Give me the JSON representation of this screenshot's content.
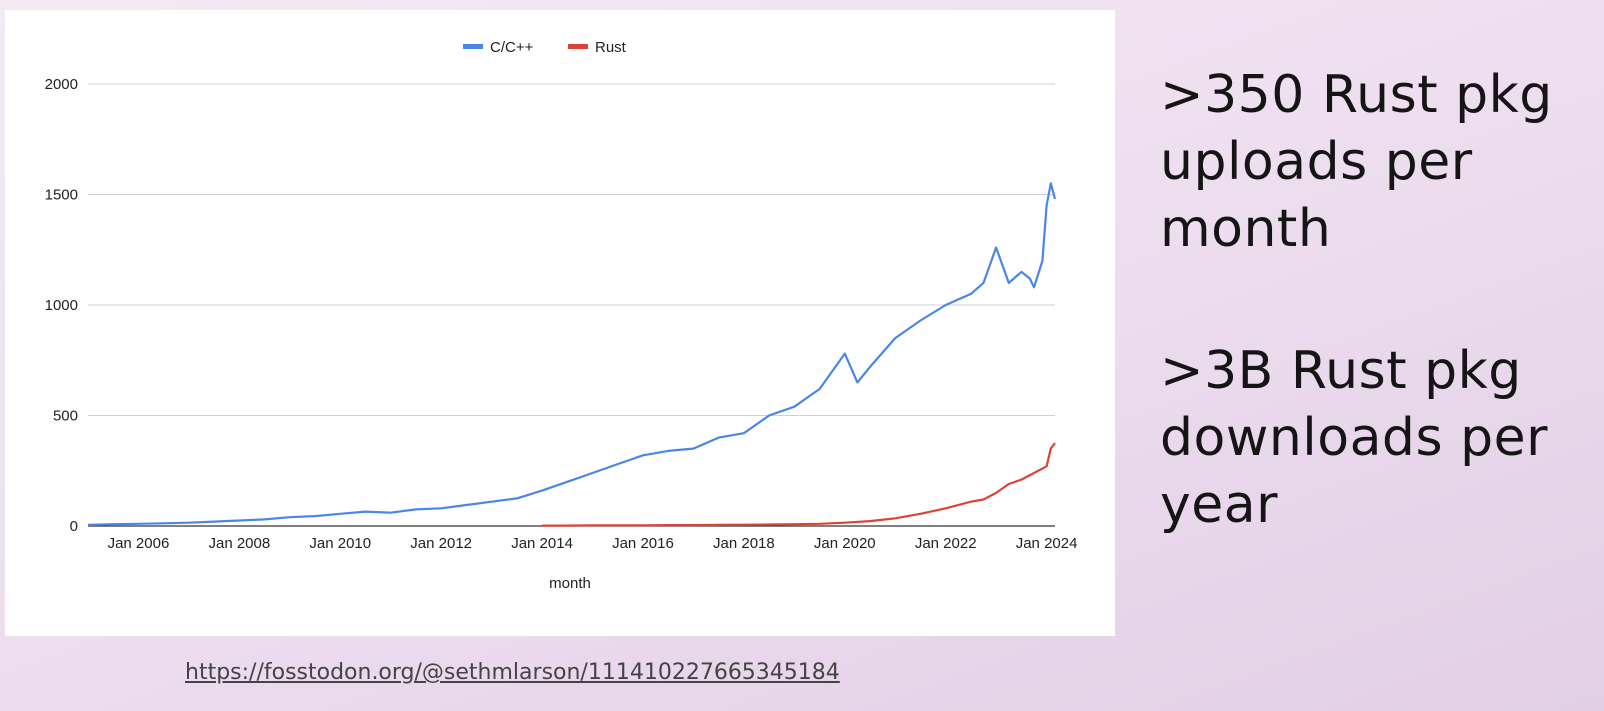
{
  "slide": {
    "statement_1": ">350 Rust pkg uploads per month",
    "statement_2": ">3B Rust pkg downloads per year",
    "source_link": "https://fosstodon.org/@sethmlarson/111410227665345184"
  },
  "chart_data": {
    "type": "line",
    "title": "",
    "xlabel": "month",
    "ylabel": "",
    "x_range": [
      "2005-01",
      "2024-03"
    ],
    "ylim": [
      0,
      2000
    ],
    "y_ticks": [
      0,
      500,
      1000,
      1500,
      2000
    ],
    "x_tick_labels": [
      "Jan 2006",
      "Jan 2008",
      "Jan 2010",
      "Jan 2012",
      "Jan 2014",
      "Jan 2016",
      "Jan 2018",
      "Jan 2020",
      "Jan 2022",
      "Jan 2024"
    ],
    "x_ticks": [
      "2006-01",
      "2008-01",
      "2010-01",
      "2012-01",
      "2014-01",
      "2016-01",
      "2018-01",
      "2020-01",
      "2022-01",
      "2024-01"
    ],
    "grid": true,
    "legend_position": "top-center",
    "series": [
      {
        "name": "C/C++",
        "color": "#4a86e8",
        "x": [
          "2005-01",
          "2005-07",
          "2006-01",
          "2006-07",
          "2007-01",
          "2007-07",
          "2008-01",
          "2008-07",
          "2009-01",
          "2009-07",
          "2010-01",
          "2010-07",
          "2011-01",
          "2011-07",
          "2012-01",
          "2012-07",
          "2013-01",
          "2013-07",
          "2014-01",
          "2014-07",
          "2015-01",
          "2015-07",
          "2016-01",
          "2016-07",
          "2017-01",
          "2017-07",
          "2018-01",
          "2018-07",
          "2019-01",
          "2019-07",
          "2020-01",
          "2020-04",
          "2020-07",
          "2021-01",
          "2021-07",
          "2022-01",
          "2022-07",
          "2022-10",
          "2023-01",
          "2023-04",
          "2023-07",
          "2023-09",
          "2023-10",
          "2023-12",
          "2024-01",
          "2024-02",
          "2024-03"
        ],
        "values": [
          5,
          8,
          10,
          12,
          15,
          20,
          25,
          30,
          40,
          45,
          55,
          65,
          60,
          75,
          80,
          95,
          110,
          125,
          160,
          200,
          240,
          280,
          320,
          340,
          350,
          400,
          420,
          500,
          540,
          620,
          780,
          650,
          720,
          850,
          930,
          1000,
          1050,
          1100,
          1260,
          1100,
          1150,
          1120,
          1080,
          1200,
          1450,
          1550,
          1480
        ]
      },
      {
        "name": "Rust",
        "color": "#db4437",
        "x": [
          "2014-01",
          "2014-07",
          "2015-01",
          "2015-07",
          "2016-01",
          "2016-07",
          "2017-01",
          "2017-07",
          "2018-01",
          "2018-07",
          "2019-01",
          "2019-07",
          "2020-01",
          "2020-07",
          "2021-01",
          "2021-07",
          "2022-01",
          "2022-07",
          "2022-10",
          "2023-01",
          "2023-04",
          "2023-07",
          "2023-10",
          "2024-01",
          "2024-02",
          "2024-03"
        ],
        "values": [
          2,
          2,
          3,
          3,
          3,
          4,
          4,
          5,
          6,
          7,
          8,
          10,
          15,
          22,
          35,
          55,
          80,
          110,
          120,
          150,
          190,
          210,
          240,
          270,
          350,
          375
        ]
      }
    ]
  }
}
